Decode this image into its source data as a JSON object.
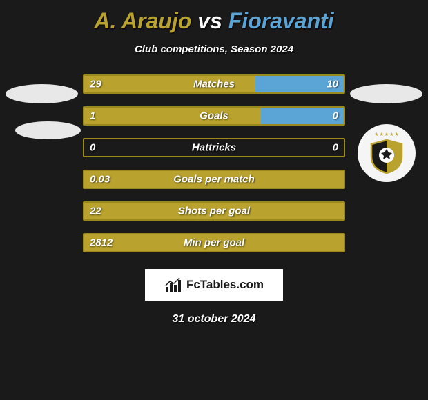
{
  "header": {
    "player1": "A. Araujo",
    "vs": "vs",
    "player2": "Fioravanti",
    "player1_color": "#b9a22e",
    "player2_color": "#5aa5d6",
    "subtitle": "Club competitions, Season 2024"
  },
  "colors": {
    "background": "#1a1a1a",
    "border_olive": "#9a8a1e",
    "fill_olive": "#b9a22e",
    "fill_blue": "#5aa5d6",
    "text": "#ffffff"
  },
  "stats": [
    {
      "label": "Matches",
      "left_val": "29",
      "right_val": "10",
      "left_pct": 66,
      "right_pct": 34,
      "right_color": "#5aa5d6"
    },
    {
      "label": "Goals",
      "left_val": "1",
      "right_val": "0",
      "left_pct": 68,
      "right_pct": 32,
      "right_color": "#5aa5d6"
    },
    {
      "label": "Hattricks",
      "left_val": "0",
      "right_val": "0",
      "left_pct": 0,
      "right_pct": 0,
      "right_color": "#5aa5d6"
    },
    {
      "label": "Goals per match",
      "left_val": "0.03",
      "right_val": "",
      "left_pct": 100,
      "right_pct": 0,
      "right_color": "#5aa5d6"
    },
    {
      "label": "Shots per goal",
      "left_val": "22",
      "right_val": "",
      "left_pct": 100,
      "right_pct": 0,
      "right_color": "#5aa5d6"
    },
    {
      "label": "Min per goal",
      "left_val": "2812",
      "right_val": "",
      "left_pct": 100,
      "right_pct": 0,
      "right_color": "#5aa5d6"
    }
  ],
  "footer": {
    "brand": "FcTables.com",
    "date": "31 october 2024"
  }
}
